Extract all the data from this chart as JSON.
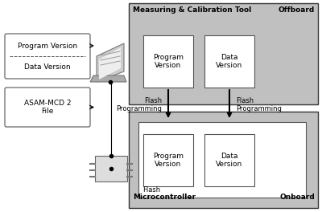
{
  "bg_color": "#ffffff",
  "gray_bg": "#c0c0c0",
  "white": "#ffffff",
  "edge_color": "#555555",
  "dark": "#333333",
  "mct_label": "Measuring & Calibration Tool",
  "offboard_label": "Offboard",
  "mc_label": "Microcontroller",
  "onboard_label": "Onboard",
  "flash_prog": "Flash\nProgramming",
  "flash_label": "Flash",
  "pv_label": "Program\nVersion",
  "dv_label": "Data\nVersion",
  "prog_version": "Program Version",
  "data_version": "Data Version",
  "asam_label": "ASAM-MCD 2\nFile",
  "fig_w": 4.0,
  "fig_h": 2.64,
  "dpi": 100
}
